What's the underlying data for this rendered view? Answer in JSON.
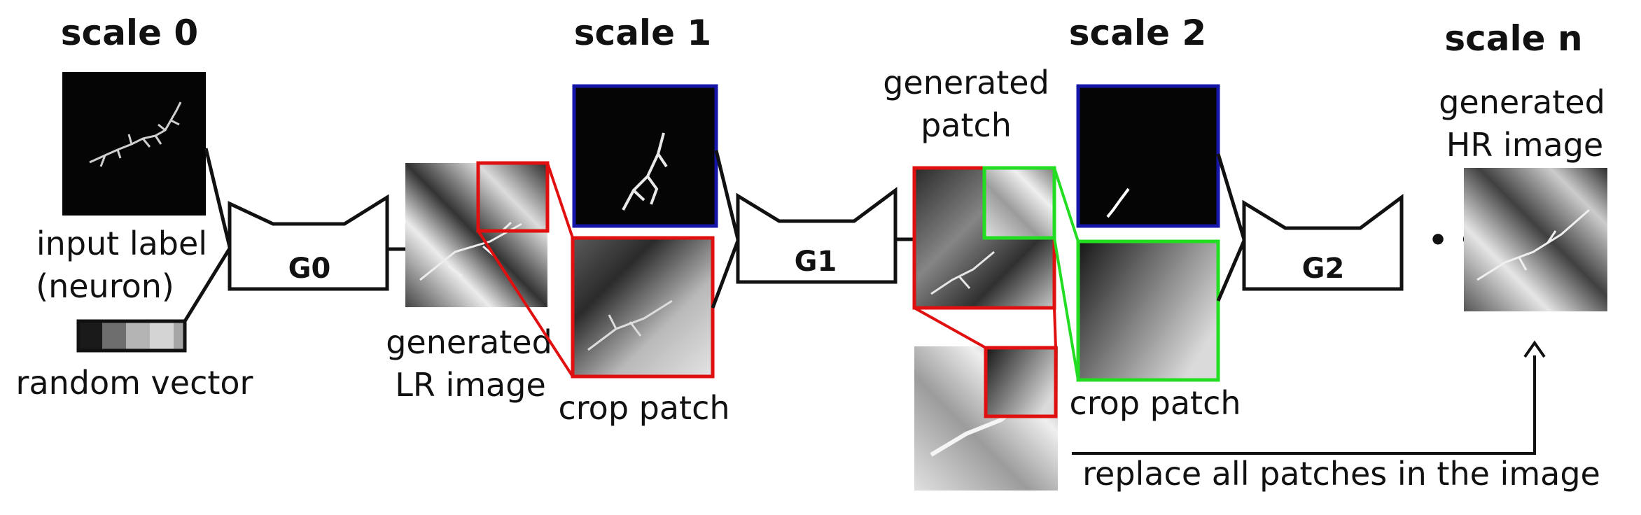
{
  "scales": {
    "scale0": "scale 0",
    "scale1": "scale 1",
    "scale2": "scale 2",
    "scalen": "scale n"
  },
  "input_label": [
    "input label",
    "(neuron)"
  ],
  "random_vector": {
    "label": "random vector",
    "cell_colors": [
      "#1a1a1a",
      "#6e6e6e",
      "#b4b4b4",
      "#d4d4d4",
      "#a6a6a6"
    ]
  },
  "generators": {
    "g0": "G0",
    "g1": "G1",
    "g2": "G2"
  },
  "generated_lr": [
    "generated",
    "LR image"
  ],
  "crop_patch_1": "crop patch",
  "crop_patch_2": "crop patch",
  "generated_patch": [
    "generated",
    "patch"
  ],
  "generated_hr": [
    "generated",
    "HR image"
  ],
  "replace_text": "replace all patches in the image",
  "ellipsis": "• • •",
  "colors": {
    "label_frame": "#1515a8",
    "crop_frame_1": "#e01010",
    "crop_frame_2": "#22dd22",
    "line": "#111111",
    "neuron": "#e8e8e8"
  },
  "icons": {
    "generator": "trapezoid-generator-icon",
    "arrow": "up-arrow-icon"
  }
}
